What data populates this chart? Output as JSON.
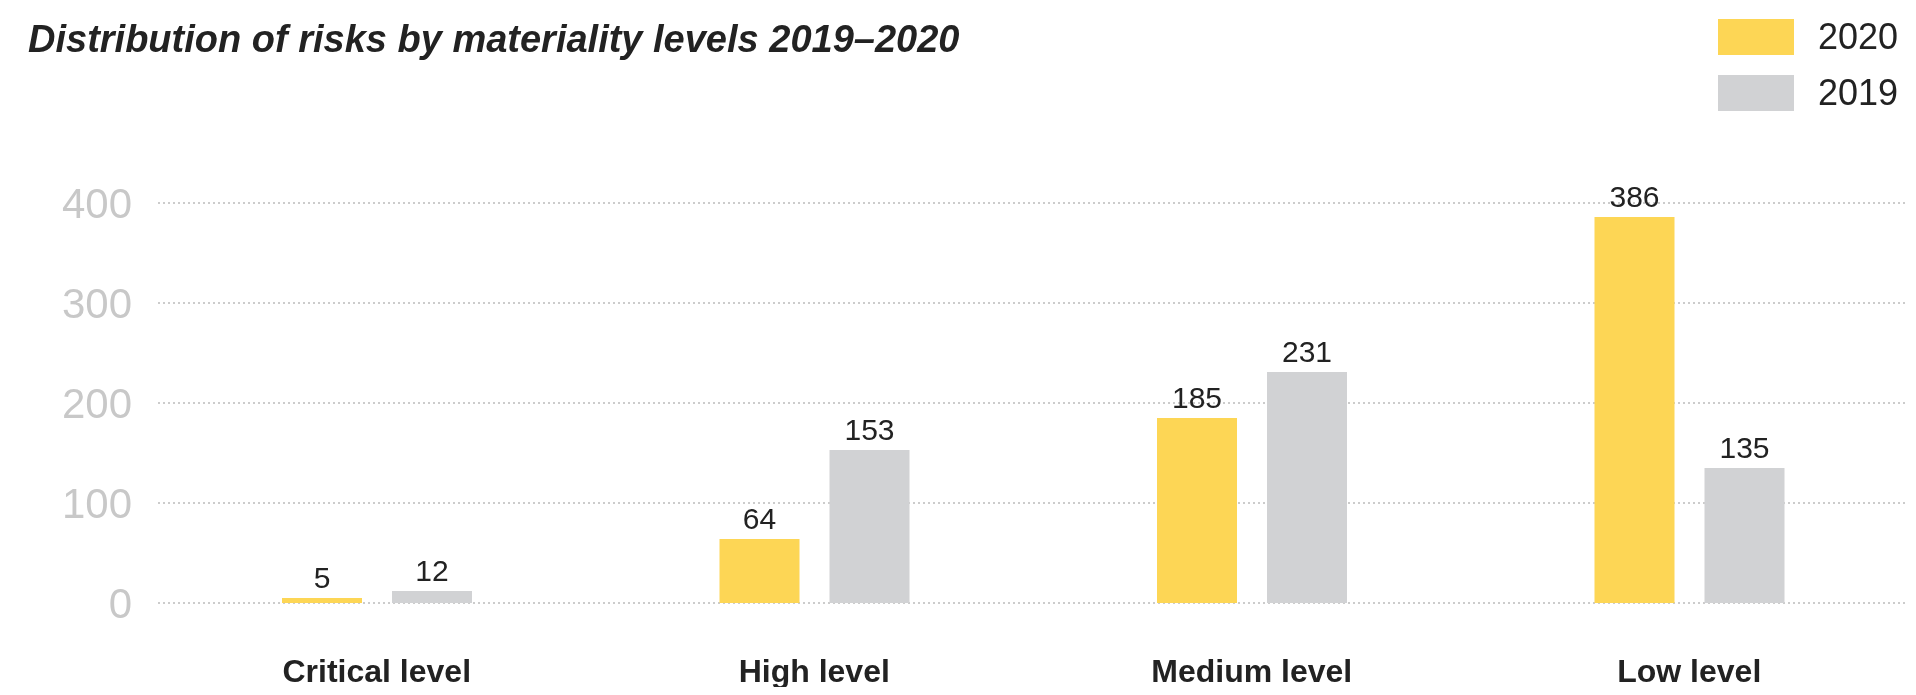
{
  "chart_data": {
    "type": "bar",
    "title": "Distribution of risks by materiality levels 2019–2020",
    "categories": [
      "Critical level",
      "High level",
      "Medium level",
      "Low level"
    ],
    "series": [
      {
        "name": "2020",
        "color": "#fdd655",
        "values": [
          5,
          64,
          185,
          386
        ]
      },
      {
        "name": "2019",
        "color": "#d1d2d4",
        "values": [
          12,
          153,
          231,
          135
        ]
      }
    ],
    "ylim": [
      0,
      400
    ],
    "yticks": [
      0,
      100,
      200,
      300,
      400
    ],
    "grid": "y",
    "legend": "top right",
    "data_labels": true
  }
}
